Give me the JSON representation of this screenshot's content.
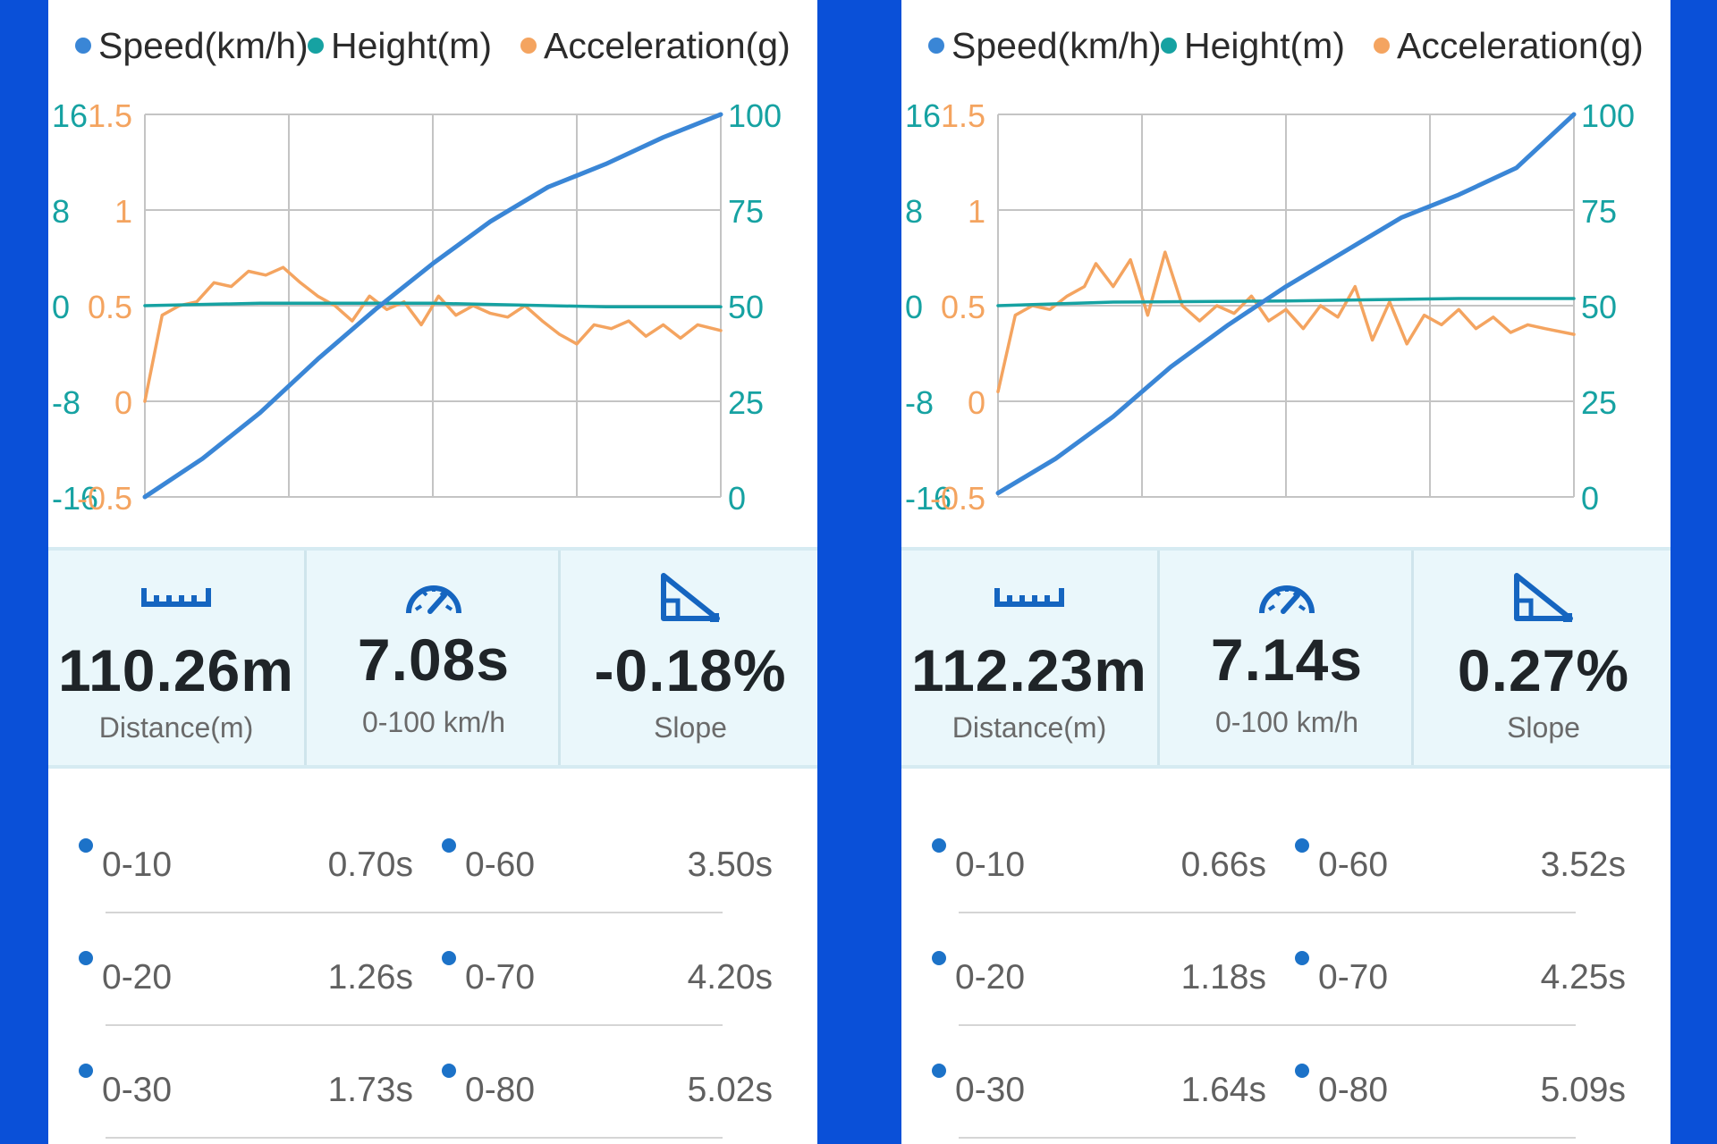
{
  "colors": {
    "speed": "#3a86d6",
    "height": "#16a2a2",
    "acceleration": "#f4a460",
    "frame": "#0a50d8",
    "grid": "#c4c4c4"
  },
  "legend": {
    "speed": "Speed(km/h)",
    "height": "Height(m)",
    "acceleration": "Acceleration(g)"
  },
  "axes": {
    "height_ticks": [
      "16",
      "8",
      "0",
      "-8",
      "-16"
    ],
    "accel_ticks": [
      "1.5",
      "1",
      "0.5",
      "0",
      "-0.5"
    ],
    "speed_ticks": [
      "100",
      "75",
      "50",
      "25",
      "0"
    ]
  },
  "icons": {
    "distance": "ruler-icon",
    "time": "speedometer-icon",
    "slope": "slope-icon"
  },
  "panels": [
    {
      "stats": [
        {
          "value": "110.26m",
          "label": "Distance(m)"
        },
        {
          "value": "7.08s",
          "label": "0-100 km/h"
        },
        {
          "value": "-0.18%",
          "label": "Slope"
        }
      ],
      "splits": [
        [
          {
            "range": "0-10",
            "time": "0.70s"
          },
          {
            "range": "0-60",
            "time": "3.50s"
          }
        ],
        [
          {
            "range": "0-20",
            "time": "1.26s"
          },
          {
            "range": "0-70",
            "time": "4.20s"
          }
        ],
        [
          {
            "range": "0-30",
            "time": "1.73s"
          },
          {
            "range": "0-80",
            "time": "5.02s"
          }
        ]
      ],
      "chart_data": {
        "type": "line",
        "x_range": [
          0,
          1
        ],
        "series": [
          {
            "name": "Speed(km/h)",
            "axis": "speed",
            "ylim": [
              0,
              100
            ],
            "x": [
              0,
              0.1,
              0.2,
              0.3,
              0.4,
              0.5,
              0.6,
              0.7,
              0.75,
              0.8,
              0.9,
              1.0
            ],
            "values": [
              0,
              10,
              22,
              36,
              49,
              61,
              72,
              81,
              84,
              87,
              94,
              100
            ]
          },
          {
            "name": "Height(m)",
            "axis": "height",
            "ylim": [
              -16,
              16
            ],
            "x": [
              0,
              0.2,
              0.5,
              0.8,
              1.0
            ],
            "values": [
              0,
              0.2,
              0.2,
              -0.1,
              -0.1
            ]
          },
          {
            "name": "Acceleration(g)",
            "axis": "acceleration",
            "ylim": [
              -0.5,
              1.5
            ],
            "x": [
              0,
              0.03,
              0.06,
              0.09,
              0.12,
              0.15,
              0.18,
              0.21,
              0.24,
              0.27,
              0.3,
              0.33,
              0.36,
              0.39,
              0.42,
              0.45,
              0.48,
              0.51,
              0.54,
              0.57,
              0.6,
              0.63,
              0.66,
              0.69,
              0.72,
              0.75,
              0.78,
              0.81,
              0.84,
              0.87,
              0.9,
              0.93,
              0.96,
              1.0
            ],
            "values": [
              0,
              0.45,
              0.5,
              0.52,
              0.62,
              0.6,
              0.68,
              0.66,
              0.7,
              0.62,
              0.55,
              0.5,
              0.42,
              0.55,
              0.48,
              0.52,
              0.4,
              0.55,
              0.45,
              0.5,
              0.46,
              0.44,
              0.5,
              0.42,
              0.35,
              0.3,
              0.4,
              0.38,
              0.42,
              0.34,
              0.4,
              0.33,
              0.4,
              0.37
            ]
          }
        ]
      }
    },
    {
      "stats": [
        {
          "value": "112.23m",
          "label": "Distance(m)"
        },
        {
          "value": "7.14s",
          "label": "0-100 km/h"
        },
        {
          "value": "0.27%",
          "label": "Slope"
        }
      ],
      "splits": [
        [
          {
            "range": "0-10",
            "time": "0.66s"
          },
          {
            "range": "0-60",
            "time": "3.52s"
          }
        ],
        [
          {
            "range": "0-20",
            "time": "1.18s"
          },
          {
            "range": "0-70",
            "time": "4.25s"
          }
        ],
        [
          {
            "range": "0-30",
            "time": "1.64s"
          },
          {
            "range": "0-80",
            "time": "5.09s"
          }
        ]
      ],
      "chart_data": {
        "type": "line",
        "x_range": [
          0,
          1
        ],
        "series": [
          {
            "name": "Speed(km/h)",
            "axis": "speed",
            "ylim": [
              0,
              100
            ],
            "x": [
              0,
              0.1,
              0.2,
              0.3,
              0.4,
              0.5,
              0.6,
              0.7,
              0.8,
              0.9,
              1.0
            ],
            "values": [
              1,
              10,
              21,
              34,
              45,
              55,
              64,
              73,
              79,
              86,
              100
            ]
          },
          {
            "name": "Height(m)",
            "axis": "height",
            "ylim": [
              -16,
              16
            ],
            "x": [
              0,
              0.2,
              0.5,
              0.8,
              1.0
            ],
            "values": [
              0,
              0.3,
              0.4,
              0.6,
              0.6
            ]
          },
          {
            "name": "Acceleration(g)",
            "axis": "acceleration",
            "ylim": [
              -0.5,
              1.5
            ],
            "x": [
              0,
              0.03,
              0.06,
              0.09,
              0.12,
              0.15,
              0.17,
              0.2,
              0.23,
              0.26,
              0.29,
              0.32,
              0.35,
              0.38,
              0.41,
              0.44,
              0.47,
              0.5,
              0.53,
              0.56,
              0.59,
              0.62,
              0.65,
              0.68,
              0.71,
              0.74,
              0.77,
              0.8,
              0.83,
              0.86,
              0.89,
              0.92,
              0.95,
              1.0
            ],
            "values": [
              0.05,
              0.45,
              0.5,
              0.48,
              0.55,
              0.6,
              0.72,
              0.6,
              0.74,
              0.45,
              0.78,
              0.5,
              0.42,
              0.5,
              0.46,
              0.55,
              0.42,
              0.48,
              0.38,
              0.5,
              0.44,
              0.6,
              0.32,
              0.52,
              0.3,
              0.45,
              0.4,
              0.48,
              0.38,
              0.44,
              0.36,
              0.4,
              0.38,
              0.35
            ]
          }
        ]
      }
    }
  ]
}
